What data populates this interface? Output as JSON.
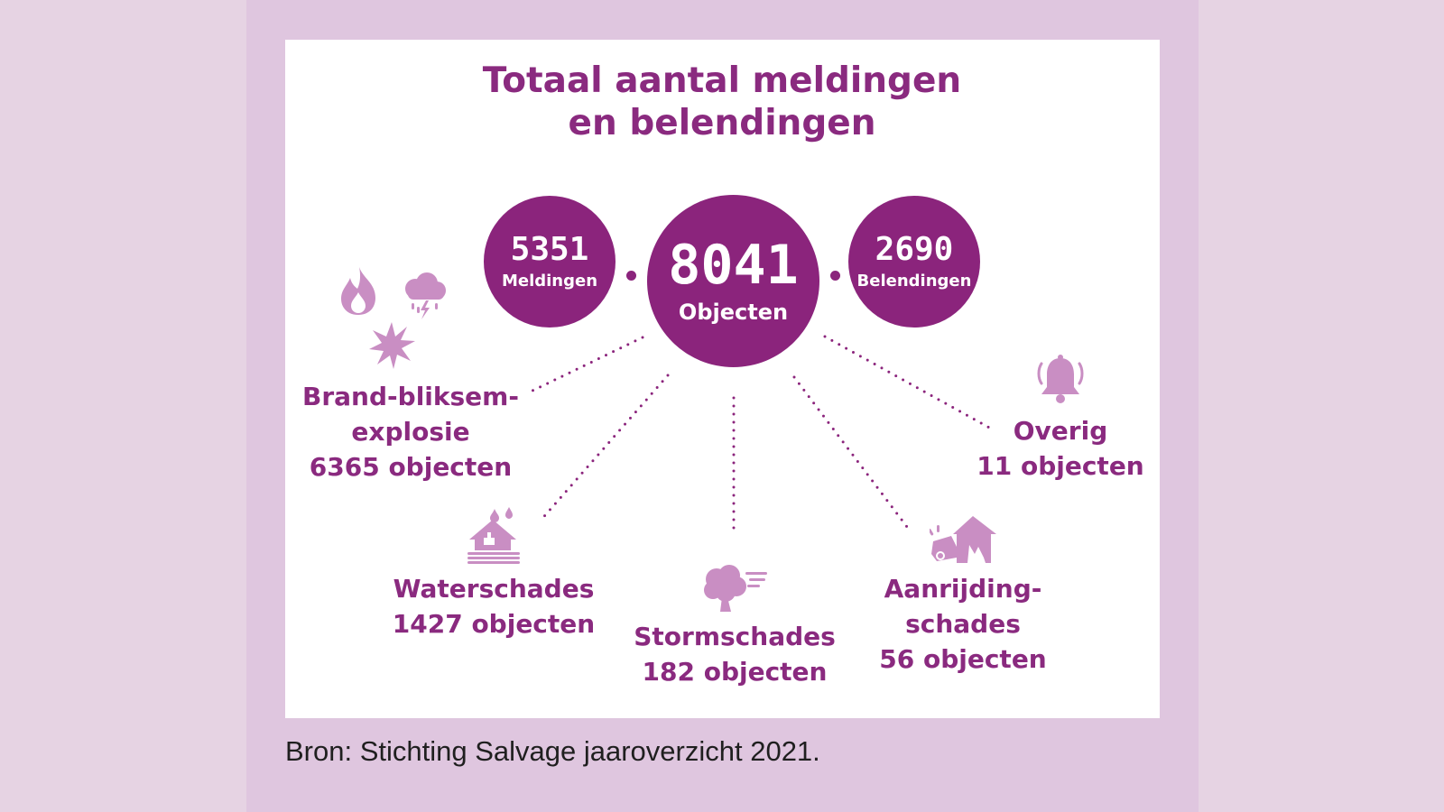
{
  "title": {
    "line1": "Totaal aantal meldingen",
    "line2": "en belendingen"
  },
  "bubbles": {
    "meldingen": {
      "value": "5351",
      "label": "Meldingen"
    },
    "objecten": {
      "value": "8041",
      "label": "Objecten"
    },
    "belendingen": {
      "value": "2690",
      "label": "Belendingen"
    }
  },
  "categories": {
    "brand": {
      "lines": [
        "Brand-bliksem-",
        "explosie",
        "6365 objecten"
      ],
      "icons": [
        "flame-icon",
        "storm-cloud-icon",
        "explosion-icon"
      ]
    },
    "water": {
      "lines": [
        "Waterschades",
        "1427 objecten"
      ],
      "icons": [
        "flooded-house-icon"
      ]
    },
    "storm": {
      "lines": [
        "Stormschades",
        "182 objecten"
      ],
      "icons": [
        "wind-tree-icon"
      ]
    },
    "aanrijding": {
      "lines": [
        "Aanrijding-",
        "schades",
        "56 objecten"
      ],
      "icons": [
        "car-crash-house-icon"
      ]
    },
    "overig": {
      "lines": [
        "Overig",
        "11 objecten"
      ],
      "icons": [
        "bell-icon"
      ]
    }
  },
  "source": "Bron: Stichting Salvage jaaroverzicht 2021.",
  "colors": {
    "primary": "#8b247c",
    "text": "#8a2a7f",
    "icon": "#c98ec3",
    "background": "#dfc6df"
  }
}
